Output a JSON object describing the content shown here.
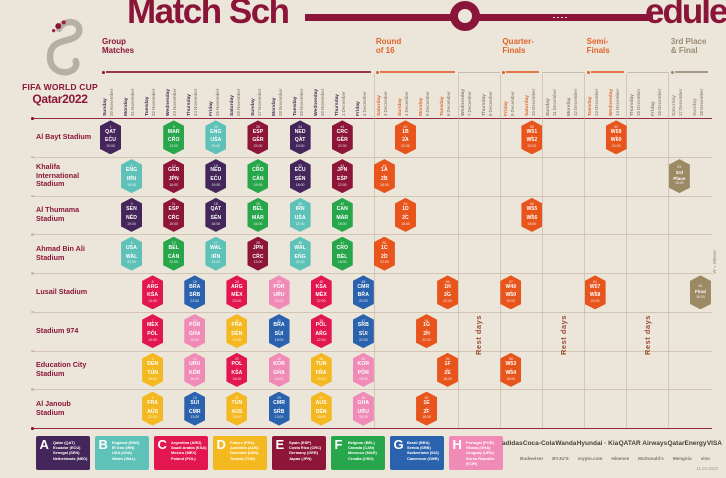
{
  "title": {
    "left": "Match Sch",
    "right": "edule"
  },
  "logo": {
    "brand_line1": "FIFA WORLD CUP",
    "brand_line2": "Qatar2022"
  },
  "phases": [
    {
      "id": "group",
      "label": "Group\nMatches",
      "col_start": 0,
      "col_end": 12,
      "color": "#8a1538"
    },
    {
      "id": "r16",
      "label": "Round\nof 16",
      "col_start": 13,
      "col_end": 16,
      "color": "#e2622b"
    },
    {
      "id": "qf",
      "label": "Quarter-\nFinals",
      "col_start": 19,
      "col_end": 20,
      "color": "#e2622b"
    },
    {
      "id": "sf",
      "label": "Semi-\nFinals",
      "col_start": 23,
      "col_end": 24,
      "color": "#e2622b"
    },
    {
      "id": "final",
      "label": "3rd Place\n& Final",
      "col_start": 27,
      "col_end": 28,
      "color": "#9a8a74"
    }
  ],
  "columns": [
    {
      "day": "Sunday",
      "date": "20 November",
      "type": "group"
    },
    {
      "day": "Monday",
      "date": "21 November",
      "type": "group"
    },
    {
      "day": "Tuesday",
      "date": "22 November",
      "type": "group"
    },
    {
      "day": "Wednesday",
      "date": "23 November",
      "type": "group"
    },
    {
      "day": "Thursday",
      "date": "24 November",
      "type": "group"
    },
    {
      "day": "Friday",
      "date": "25 November",
      "type": "group"
    },
    {
      "day": "Saturday",
      "date": "26 November",
      "type": "group"
    },
    {
      "day": "Sunday",
      "date": "27 November",
      "type": "group"
    },
    {
      "day": "Monday",
      "date": "28 November",
      "type": "group"
    },
    {
      "day": "Tuesday",
      "date": "29 November",
      "type": "group"
    },
    {
      "day": "Wednesday",
      "date": "30 November",
      "type": "group"
    },
    {
      "day": "Thursday",
      "date": "1 December",
      "type": "group"
    },
    {
      "day": "Friday",
      "date": "2 December",
      "type": "group"
    },
    {
      "day": "Saturday",
      "date": "3 December",
      "type": "ko"
    },
    {
      "day": "Sunday",
      "date": "4 December",
      "type": "ko"
    },
    {
      "day": "Monday",
      "date": "5 December",
      "type": "ko"
    },
    {
      "day": "Tuesday",
      "date": "6 December",
      "type": "ko"
    },
    {
      "day": "Wednesday",
      "date": "7 December",
      "type": "rest"
    },
    {
      "day": "Thursday",
      "date": "8 December",
      "type": "rest"
    },
    {
      "day": "Friday",
      "date": "9 December",
      "type": "ko"
    },
    {
      "day": "Saturday",
      "date": "10 December",
      "type": "ko"
    },
    {
      "day": "Sunday",
      "date": "11 December",
      "type": "rest"
    },
    {
      "day": "Monday",
      "date": "12 December",
      "type": "rest"
    },
    {
      "day": "Tuesday",
      "date": "13 December",
      "type": "ko"
    },
    {
      "day": "Wednesday",
      "date": "14 December",
      "type": "ko"
    },
    {
      "day": "Thursday",
      "date": "15 December",
      "type": "rest"
    },
    {
      "day": "Friday",
      "date": "16 December",
      "type": "rest"
    },
    {
      "day": "Saturday",
      "date": "17 December",
      "type": "final"
    },
    {
      "day": "Sunday",
      "date": "18 December",
      "type": "final"
    }
  ],
  "day_colors": {
    "group": "#45284e",
    "ko": "#e0672f",
    "rest": "#8b7e6f",
    "final": "#a09180"
  },
  "rest_days_label": "Rest days",
  "rest_spans": [
    {
      "col_start": 17
    },
    {
      "col_start": 21
    },
    {
      "col_start": 25
    }
  ],
  "stadiums": [
    "Al Bayt Stadium",
    "Khalifa International Stadium",
    "Al Thumama Stadium",
    "Ahmad Bin Ali Stadium",
    "Lusail Stadium",
    "Stadium 974",
    "Education City Stadium",
    "Al Janoub Stadium"
  ],
  "group_colors": {
    "A": "#44265b",
    "B": "#5fc2b8",
    "C": "#e3174f",
    "D": "#f4b821",
    "E": "#8c1538",
    "F": "#27a64b",
    "G": "#2a62ae",
    "H": "#ef8bb6",
    "KO": "#e7551d",
    "FN": "#9b8a64"
  },
  "matches": [
    {
      "stadium": 0,
      "col": 0,
      "group": "A",
      "num": "1",
      "home": "QAT",
      "away": "ECU",
      "time": "19:00"
    },
    {
      "stadium": 0,
      "col": 3,
      "group": "F",
      "num": "9",
      "home": "MAR",
      "away": "CRO",
      "time": "13:00"
    },
    {
      "stadium": 0,
      "col": 5,
      "group": "B",
      "num": "20",
      "home": "ENG",
      "away": "USA",
      "time": "22:00"
    },
    {
      "stadium": 0,
      "col": 7,
      "group": "E",
      "num": "28",
      "home": "ESP",
      "away": "GER",
      "time": "22:00"
    },
    {
      "stadium": 0,
      "col": 9,
      "group": "A",
      "num": "34",
      "home": "NED",
      "away": "QAT",
      "time": "19:00"
    },
    {
      "stadium": 0,
      "col": 11,
      "group": "E",
      "num": "44",
      "home": "CRC",
      "away": "GER",
      "time": "22:00"
    },
    {
      "stadium": 0,
      "col": 14,
      "group": "KO",
      "num": "52",
      "home": "1B",
      "away": "2A",
      "time": "22:00"
    },
    {
      "stadium": 0,
      "col": 20,
      "group": "KO",
      "num": "59",
      "home": "W51",
      "away": "W52",
      "time": "22:00"
    },
    {
      "stadium": 0,
      "col": 24,
      "group": "KO",
      "num": "62",
      "home": "W59",
      "away": "W60",
      "time": "22:00"
    },
    {
      "stadium": 1,
      "col": 1,
      "group": "B",
      "num": "2",
      "home": "ENG",
      "away": "IRN",
      "time": "16:00"
    },
    {
      "stadium": 1,
      "col": 3,
      "group": "E",
      "num": "10",
      "home": "GER",
      "away": "JPN",
      "time": "16:00"
    },
    {
      "stadium": 1,
      "col": 5,
      "group": "A",
      "num": "19",
      "home": "NED",
      "away": "ECU",
      "time": "19:00"
    },
    {
      "stadium": 1,
      "col": 7,
      "group": "F",
      "num": "27",
      "home": "CRO",
      "away": "CAN",
      "time": "19:00"
    },
    {
      "stadium": 1,
      "col": 9,
      "group": "A",
      "num": "33",
      "home": "ECU",
      "away": "SEN",
      "time": "18:00"
    },
    {
      "stadium": 1,
      "col": 11,
      "group": "E",
      "num": "43",
      "home": "JPN",
      "away": "ESP",
      "time": "22:00"
    },
    {
      "stadium": 1,
      "col": 13,
      "group": "KO",
      "num": "49",
      "home": "1A",
      "away": "2B",
      "time": "18:00"
    },
    {
      "stadium": 1,
      "col": 27,
      "group": "FN",
      "num": "63",
      "label": "3rd\nPlace",
      "time": "18:00"
    },
    {
      "stadium": 2,
      "col": 1,
      "group": "A",
      "num": "3",
      "home": "SEN",
      "away": "NED",
      "time": "19:00"
    },
    {
      "stadium": 2,
      "col": 3,
      "group": "E",
      "num": "11",
      "home": "ESP",
      "away": "CRC",
      "time": "19:00"
    },
    {
      "stadium": 2,
      "col": 5,
      "group": "A",
      "num": "18",
      "home": "QAT",
      "away": "SEN",
      "time": "16:00"
    },
    {
      "stadium": 2,
      "col": 7,
      "group": "F",
      "num": "26",
      "home": "BEL",
      "away": "MAR",
      "time": "16:00"
    },
    {
      "stadium": 2,
      "col": 9,
      "group": "B",
      "num": "35",
      "home": "IRN",
      "away": "USA",
      "time": "22:00"
    },
    {
      "stadium": 2,
      "col": 11,
      "group": "F",
      "num": "42",
      "home": "CAN",
      "away": "MAR",
      "time": "18:00"
    },
    {
      "stadium": 2,
      "col": 14,
      "group": "KO",
      "num": "51",
      "home": "1D",
      "away": "2C",
      "time": "18:00"
    },
    {
      "stadium": 2,
      "col": 20,
      "group": "KO",
      "num": "60",
      "home": "W55",
      "away": "W56",
      "time": "18:00"
    },
    {
      "stadium": 3,
      "col": 1,
      "group": "B",
      "num": "4",
      "home": "USA",
      "away": "WAL",
      "time": "22:00"
    },
    {
      "stadium": 3,
      "col": 3,
      "group": "F",
      "num": "12",
      "home": "BEL",
      "away": "CAN",
      "time": "22:00"
    },
    {
      "stadium": 3,
      "col": 5,
      "group": "B",
      "num": "17",
      "home": "WAL",
      "away": "IRN",
      "time": "13:00"
    },
    {
      "stadium": 3,
      "col": 7,
      "group": "E",
      "num": "25",
      "home": "JPN",
      "away": "CRC",
      "time": "13:00"
    },
    {
      "stadium": 3,
      "col": 9,
      "group": "B",
      "num": "36",
      "home": "WAL",
      "away": "ENG",
      "time": "22:00"
    },
    {
      "stadium": 3,
      "col": 11,
      "group": "F",
      "num": "41",
      "home": "CRO",
      "away": "BEL",
      "time": "18:00"
    },
    {
      "stadium": 3,
      "col": 13,
      "group": "KO",
      "num": "50",
      "home": "1C",
      "away": "2D",
      "time": "22:00"
    },
    {
      "stadium": 4,
      "col": 2,
      "group": "C",
      "num": "5",
      "home": "ARG",
      "away": "KSA",
      "time": "13:00"
    },
    {
      "stadium": 4,
      "col": 4,
      "group": "G",
      "num": "16",
      "home": "BRA",
      "away": "SRB",
      "time": "22:00"
    },
    {
      "stadium": 4,
      "col": 6,
      "group": "C",
      "num": "24",
      "home": "ARG",
      "away": "MEX",
      "time": "22:00"
    },
    {
      "stadium": 4,
      "col": 8,
      "group": "H",
      "num": "32",
      "home": "POR",
      "away": "URU",
      "time": "22:00"
    },
    {
      "stadium": 4,
      "col": 10,
      "group": "C",
      "num": "40",
      "home": "KSA",
      "away": "MEX",
      "time": "22:00"
    },
    {
      "stadium": 4,
      "col": 12,
      "group": "G",
      "num": "48",
      "home": "CMR",
      "away": "BRA",
      "time": "22:00"
    },
    {
      "stadium": 4,
      "col": 16,
      "group": "KO",
      "num": "56",
      "home": "1H",
      "away": "2G",
      "time": "22:00"
    },
    {
      "stadium": 4,
      "col": 19,
      "group": "KO",
      "num": "57",
      "home": "W49",
      "away": "W50",
      "time": "22:00"
    },
    {
      "stadium": 4,
      "col": 23,
      "group": "KO",
      "num": "61",
      "home": "W57",
      "away": "W58",
      "time": "22:00"
    },
    {
      "stadium": 4,
      "col": 28,
      "group": "FN",
      "num": "64",
      "label": "Final",
      "time": "18:00"
    },
    {
      "stadium": 5,
      "col": 2,
      "group": "C",
      "num": "7",
      "home": "MEX",
      "away": "POL",
      "time": "19:00"
    },
    {
      "stadium": 5,
      "col": 4,
      "group": "H",
      "num": "15",
      "home": "POR",
      "away": "GHA",
      "time": "19:00"
    },
    {
      "stadium": 5,
      "col": 6,
      "group": "D",
      "num": "23",
      "home": "FRA",
      "away": "DEN",
      "time": "19:00"
    },
    {
      "stadium": 5,
      "col": 8,
      "group": "G",
      "num": "31",
      "home": "BRA",
      "away": "SUI",
      "time": "19:00"
    },
    {
      "stadium": 5,
      "col": 10,
      "group": "C",
      "num": "39",
      "home": "POL",
      "away": "ARG",
      "time": "22:00"
    },
    {
      "stadium": 5,
      "col": 12,
      "group": "G",
      "num": "47",
      "home": "SRB",
      "away": "SUI",
      "time": "22:00"
    },
    {
      "stadium": 5,
      "col": 15,
      "group": "KO",
      "num": "54",
      "home": "1G",
      "away": "2H",
      "time": "22:00"
    },
    {
      "stadium": 6,
      "col": 2,
      "group": "D",
      "num": "6",
      "home": "DEN",
      "away": "TUN",
      "time": "16:00"
    },
    {
      "stadium": 6,
      "col": 4,
      "group": "H",
      "num": "14",
      "home": "URU",
      "away": "KOR",
      "time": "16:00"
    },
    {
      "stadium": 6,
      "col": 6,
      "group": "C",
      "num": "22",
      "home": "POL",
      "away": "KSA",
      "time": "16:00"
    },
    {
      "stadium": 6,
      "col": 8,
      "group": "H",
      "num": "30",
      "home": "KOR",
      "away": "GHA",
      "time": "16:00"
    },
    {
      "stadium": 6,
      "col": 10,
      "group": "D",
      "num": "38",
      "home": "TUN",
      "away": "FRA",
      "time": "18:00"
    },
    {
      "stadium": 6,
      "col": 12,
      "group": "H",
      "num": "46",
      "home": "KOR",
      "away": "POR",
      "time": "18:00"
    },
    {
      "stadium": 6,
      "col": 16,
      "group": "KO",
      "num": "55",
      "home": "1F",
      "away": "2E",
      "time": "18:00"
    },
    {
      "stadium": 6,
      "col": 19,
      "group": "KO",
      "num": "58",
      "home": "W53",
      "away": "W54",
      "time": "18:00"
    },
    {
      "stadium": 7,
      "col": 2,
      "group": "D",
      "num": "8",
      "home": "FRA",
      "away": "AUS",
      "time": "22:00"
    },
    {
      "stadium": 7,
      "col": 4,
      "group": "G",
      "num": "13",
      "home": "SUI",
      "away": "CMR",
      "time": "13:00"
    },
    {
      "stadium": 7,
      "col": 6,
      "group": "D",
      "num": "21",
      "home": "TUN",
      "away": "AUS",
      "time": "13:00"
    },
    {
      "stadium": 7,
      "col": 8,
      "group": "G",
      "num": "29",
      "home": "CMR",
      "away": "SRB",
      "time": "13:00"
    },
    {
      "stadium": 7,
      "col": 10,
      "group": "D",
      "num": "37",
      "home": "AUS",
      "away": "DEN",
      "time": "18:00"
    },
    {
      "stadium": 7,
      "col": 12,
      "group": "H",
      "num": "45",
      "home": "GHA",
      "away": "URU",
      "time": "18:00"
    },
    {
      "stadium": 7,
      "col": 15,
      "group": "KO",
      "num": "53",
      "home": "1E",
      "away": "2F",
      "time": "18:00"
    }
  ],
  "legend": [
    {
      "letter": "A",
      "color": "#44265b",
      "teams": [
        "Qatar (QAT)",
        "Ecuador (ECU)",
        "Senegal (SEN)",
        "Netherlands (NED)"
      ]
    },
    {
      "letter": "B",
      "color": "#5fc2b8",
      "teams": [
        "England (ENG)",
        "IR Iran (IRN)",
        "USA (USA)",
        "Wales (WAL)"
      ]
    },
    {
      "letter": "C",
      "color": "#e3174f",
      "teams": [
        "Argentina (ARG)",
        "Saudi Arabia (KSA)",
        "Mexico (MEX)",
        "Poland (POL)"
      ]
    },
    {
      "letter": "D",
      "color": "#f4b821",
      "teams": [
        "France (FRA)",
        "Australia (AUS)",
        "Denmark (DEN)",
        "Tunisia (TUN)"
      ]
    },
    {
      "letter": "E",
      "color": "#8c1538",
      "teams": [
        "Spain (ESP)",
        "Costa Rica (CRC)",
        "Germany (GER)",
        "Japan (JPN)"
      ]
    },
    {
      "letter": "F",
      "color": "#27a64b",
      "teams": [
        "Belgium (BEL)",
        "Canada (CAN)",
        "Morocco (MAR)",
        "Croatia (CRO)"
      ]
    },
    {
      "letter": "G",
      "color": "#2a62ae",
      "teams": [
        "Brazil (BRA)",
        "Serbia (SRB)",
        "Switzerland (SUI)",
        "Cameroon (CMR)"
      ]
    },
    {
      "letter": "H",
      "color": "#ef8bb6",
      "teams": [
        "Portugal (POR)",
        "Ghana (GHA)",
        "Uruguay (URU)",
        "Korea Republic (KOR)"
      ]
    }
  ],
  "sponsors": {
    "row1": [
      "adidas",
      "Coca-Cola",
      "Wanda",
      "Hyundai · Kia",
      "QATAR Airways",
      "QatarEnergy",
      "VISA"
    ],
    "row2": [
      "Budweiser",
      "BYJU'S",
      "crypto.com",
      "Hisense",
      "McDonald's",
      "Mengniu",
      "vivo"
    ]
  },
  "side_note": "W = Winner",
  "stamp": "11.04.2022"
}
